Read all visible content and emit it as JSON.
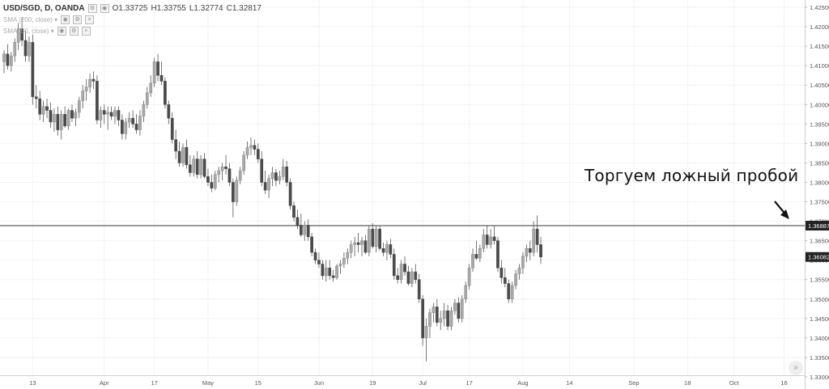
{
  "legend": {
    "symbol": "USD/SGD, D, OANDA",
    "open": "O1.33725",
    "high": "H1.33755",
    "low": "L1.32774",
    "close": "C1.32817",
    "study1": "SMA (200, close) ▾",
    "study2": "SMA (50, close) ▾"
  },
  "annotation": "Торгуем ложный пробой",
  "price_tags": {
    "level": "1.36887",
    "last": "1.36082"
  },
  "scroll_icon": "double-chevron-right-icon",
  "colors": {
    "up": "#a8a8a8",
    "down": "#4a4a4a",
    "wick": "#555555",
    "level_line": "#333333",
    "grid": "#f2f2f2",
    "tag_bg": "#222222"
  },
  "chart_data": {
    "type": "candlestick",
    "y_ticks": [
      "1.42500",
      "1.42000",
      "1.41500",
      "1.41000",
      "1.40500",
      "1.40000",
      "1.39500",
      "1.39000",
      "1.38500",
      "1.38000",
      "1.37500",
      "1.37000",
      "1.36500",
      "1.36000",
      "1.35500",
      "1.35000",
      "1.34500",
      "1.34000",
      "1.33500",
      "1.33000"
    ],
    "ylim": [
      1.33,
      1.4275
    ],
    "x_ticks": [
      {
        "label": "13",
        "bar": 8
      },
      {
        "label": "Apr",
        "bar": 28
      },
      {
        "label": "17",
        "bar": 42
      },
      {
        "label": "May",
        "bar": 57
      },
      {
        "label": "15",
        "bar": 71
      },
      {
        "label": "Jun",
        "bar": 88
      },
      {
        "label": "19",
        "bar": 103
      },
      {
        "label": "Jul",
        "bar": 117
      },
      {
        "label": "17",
        "bar": 130
      },
      {
        "label": "Aug",
        "bar": 145
      },
      {
        "label": "14",
        "bar": 158
      },
      {
        "label": "Sep",
        "bar": 176
      },
      {
        "label": "18",
        "bar": 191
      },
      {
        "label": "Oct",
        "bar": 204
      },
      {
        "label": "16",
        "bar": 218
      }
    ],
    "horizontal_level": 1.36887,
    "last_price": 1.36082,
    "ohlc": [
      [
        1.411,
        1.414,
        1.408,
        1.413
      ],
      [
        1.413,
        1.4155,
        1.409,
        1.41
      ],
      [
        1.41,
        1.4135,
        1.4085,
        1.4125
      ],
      [
        1.4125,
        1.417,
        1.411,
        1.416
      ],
      [
        1.416,
        1.421,
        1.414,
        1.4195
      ],
      [
        1.4195,
        1.4225,
        1.415,
        1.4165
      ],
      [
        1.4165,
        1.419,
        1.411,
        1.4125
      ],
      [
        1.4125,
        1.4175,
        1.411,
        1.416
      ],
      [
        1.416,
        1.418,
        1.4,
        1.402
      ],
      [
        1.402,
        1.405,
        1.399,
        1.4015
      ],
      [
        1.4015,
        1.4035,
        1.396,
        1.3975
      ],
      [
        1.3975,
        1.401,
        1.3955,
        1.3995
      ],
      [
        1.3995,
        1.4015,
        1.3965,
        1.3985
      ],
      [
        1.3985,
        1.4005,
        1.394,
        1.3955
      ],
      [
        1.3955,
        1.399,
        1.393,
        1.3975
      ],
      [
        1.3975,
        1.3995,
        1.392,
        1.3935
      ],
      [
        1.3935,
        1.3985,
        1.391,
        1.3975
      ],
      [
        1.3975,
        1.3995,
        1.394,
        1.3945
      ],
      [
        1.3945,
        1.399,
        1.3935,
        1.3985
      ],
      [
        1.3985,
        1.4,
        1.3955,
        1.3965
      ],
      [
        1.3965,
        1.399,
        1.3945,
        1.398
      ],
      [
        1.398,
        1.402,
        1.3965,
        1.401
      ],
      [
        1.401,
        1.405,
        1.399,
        1.4035
      ],
      [
        1.4035,
        1.4065,
        1.401,
        1.4045
      ],
      [
        1.4045,
        1.408,
        1.403,
        1.4065
      ],
      [
        1.4065,
        1.4085,
        1.404,
        1.406
      ],
      [
        1.406,
        1.4075,
        1.395,
        1.396
      ],
      [
        1.396,
        1.3995,
        1.394,
        1.3985
      ],
      [
        1.3985,
        1.4,
        1.395,
        1.3975
      ],
      [
        1.3975,
        1.3995,
        1.3935,
        1.398
      ],
      [
        1.398,
        1.3995,
        1.396,
        1.397
      ],
      [
        1.397,
        1.3995,
        1.395,
        1.3985
      ],
      [
        1.3985,
        1.3995,
        1.3945,
        1.396
      ],
      [
        1.396,
        1.3975,
        1.391,
        1.3925
      ],
      [
        1.3925,
        1.3965,
        1.391,
        1.3955
      ],
      [
        1.3955,
        1.398,
        1.394,
        1.3965
      ],
      [
        1.3965,
        1.3985,
        1.394,
        1.395
      ],
      [
        1.395,
        1.3975,
        1.3925,
        1.3935
      ],
      [
        1.3935,
        1.3985,
        1.392,
        1.397
      ],
      [
        1.397,
        1.401,
        1.3955,
        1.4
      ],
      [
        1.4,
        1.4045,
        1.399,
        1.403
      ],
      [
        1.403,
        1.4075,
        1.402,
        1.4055
      ],
      [
        1.4055,
        1.412,
        1.4045,
        1.411
      ],
      [
        1.411,
        1.413,
        1.406,
        1.4075
      ],
      [
        1.4075,
        1.411,
        1.405,
        1.406
      ],
      [
        1.406,
        1.407,
        1.399,
        1.4
      ],
      [
        1.4,
        1.401,
        1.395,
        1.3965
      ],
      [
        1.3965,
        1.398,
        1.39,
        1.391
      ],
      [
        1.391,
        1.3935,
        1.386,
        1.388
      ],
      [
        1.388,
        1.3905,
        1.384,
        1.385
      ],
      [
        1.385,
        1.39,
        1.384,
        1.389
      ],
      [
        1.389,
        1.391,
        1.3835,
        1.3845
      ],
      [
        1.3845,
        1.387,
        1.3815,
        1.3825
      ],
      [
        1.3825,
        1.387,
        1.3815,
        1.386
      ],
      [
        1.386,
        1.388,
        1.381,
        1.382
      ],
      [
        1.382,
        1.387,
        1.381,
        1.386
      ],
      [
        1.386,
        1.3875,
        1.381,
        1.3815
      ],
      [
        1.3815,
        1.3835,
        1.379,
        1.38
      ],
      [
        1.38,
        1.382,
        1.3775,
        1.3785
      ],
      [
        1.3785,
        1.383,
        1.378,
        1.382
      ],
      [
        1.382,
        1.384,
        1.38,
        1.383
      ],
      [
        1.383,
        1.385,
        1.3805,
        1.384
      ],
      [
        1.384,
        1.387,
        1.382,
        1.3835
      ],
      [
        1.3835,
        1.385,
        1.379,
        1.38
      ],
      [
        1.38,
        1.381,
        1.371,
        1.375
      ],
      [
        1.375,
        1.3815,
        1.374,
        1.3805
      ],
      [
        1.3805,
        1.384,
        1.3795,
        1.383
      ],
      [
        1.383,
        1.388,
        1.382,
        1.387
      ],
      [
        1.387,
        1.3905,
        1.386,
        1.389
      ],
      [
        1.389,
        1.3915,
        1.387,
        1.3895
      ],
      [
        1.3895,
        1.391,
        1.387,
        1.3885
      ],
      [
        1.3885,
        1.39,
        1.385,
        1.386
      ],
      [
        1.386,
        1.388,
        1.379,
        1.38
      ],
      [
        1.38,
        1.383,
        1.377,
        1.378
      ],
      [
        1.378,
        1.382,
        1.376,
        1.381
      ],
      [
        1.381,
        1.384,
        1.379,
        1.3825
      ],
      [
        1.3825,
        1.3835,
        1.379,
        1.3805
      ],
      [
        1.3805,
        1.383,
        1.3795,
        1.3815
      ],
      [
        1.3815,
        1.386,
        1.3805,
        1.384
      ],
      [
        1.384,
        1.3855,
        1.379,
        1.38
      ],
      [
        1.38,
        1.381,
        1.373,
        1.374
      ],
      [
        1.374,
        1.375,
        1.37,
        1.371
      ],
      [
        1.371,
        1.373,
        1.368,
        1.369
      ],
      [
        1.369,
        1.372,
        1.366,
        1.3665
      ],
      [
        1.3665,
        1.37,
        1.365,
        1.369
      ],
      [
        1.369,
        1.3705,
        1.365,
        1.366
      ],
      [
        1.366,
        1.367,
        1.361,
        1.362
      ],
      [
        1.362,
        1.363,
        1.359,
        1.36
      ],
      [
        1.36,
        1.362,
        1.358,
        1.359
      ],
      [
        1.359,
        1.36,
        1.355,
        1.356
      ],
      [
        1.356,
        1.36,
        1.3545,
        1.358
      ],
      [
        1.358,
        1.36,
        1.355,
        1.356
      ],
      [
        1.356,
        1.3575,
        1.3545,
        1.3555
      ],
      [
        1.3555,
        1.359,
        1.355,
        1.3585
      ],
      [
        1.3585,
        1.36,
        1.3565,
        1.359
      ],
      [
        1.359,
        1.362,
        1.358,
        1.3605
      ],
      [
        1.3605,
        1.363,
        1.359,
        1.362
      ],
      [
        1.362,
        1.365,
        1.3605,
        1.364
      ],
      [
        1.364,
        1.366,
        1.361,
        1.3645
      ],
      [
        1.3645,
        1.367,
        1.362,
        1.364
      ],
      [
        1.364,
        1.366,
        1.361,
        1.365
      ],
      [
        1.365,
        1.3665,
        1.3615,
        1.362
      ],
      [
        1.362,
        1.369,
        1.361,
        1.368
      ],
      [
        1.368,
        1.3695,
        1.363,
        1.3635
      ],
      [
        1.3635,
        1.369,
        1.362,
        1.368
      ],
      [
        1.368,
        1.369,
        1.3625,
        1.363
      ],
      [
        1.363,
        1.3645,
        1.361,
        1.362
      ],
      [
        1.362,
        1.365,
        1.36,
        1.364
      ],
      [
        1.364,
        1.3655,
        1.3605,
        1.3615
      ],
      [
        1.3615,
        1.363,
        1.355,
        1.356
      ],
      [
        1.356,
        1.358,
        1.354,
        1.355
      ],
      [
        1.355,
        1.36,
        1.354,
        1.359
      ],
      [
        1.359,
        1.361,
        1.356,
        1.357
      ],
      [
        1.357,
        1.3585,
        1.3535,
        1.354
      ],
      [
        1.354,
        1.358,
        1.353,
        1.357
      ],
      [
        1.357,
        1.359,
        1.354,
        1.355
      ],
      [
        1.355,
        1.3565,
        1.349,
        1.35
      ],
      [
        1.35,
        1.351,
        1.338,
        1.34
      ],
      [
        1.34,
        1.345,
        1.334,
        1.343
      ],
      [
        1.343,
        1.3475,
        1.34,
        1.3465
      ],
      [
        1.3465,
        1.349,
        1.344,
        1.348
      ],
      [
        1.348,
        1.35,
        1.343,
        1.344
      ],
      [
        1.344,
        1.347,
        1.342,
        1.345
      ],
      [
        1.345,
        1.349,
        1.343,
        1.347
      ],
      [
        1.347,
        1.3485,
        1.342,
        1.343
      ],
      [
        1.343,
        1.348,
        1.342,
        1.347
      ],
      [
        1.347,
        1.35,
        1.346,
        1.349
      ],
      [
        1.349,
        1.3505,
        1.344,
        1.345
      ],
      [
        1.345,
        1.351,
        1.344,
        1.35
      ],
      [
        1.35,
        1.3545,
        1.349,
        1.3535
      ],
      [
        1.3535,
        1.359,
        1.3525,
        1.358
      ],
      [
        1.358,
        1.363,
        1.357,
        1.3615
      ],
      [
        1.3615,
        1.365,
        1.36,
        1.3605
      ],
      [
        1.3605,
        1.364,
        1.3595,
        1.363
      ],
      [
        1.363,
        1.368,
        1.362,
        1.3665
      ],
      [
        1.3665,
        1.369,
        1.363,
        1.364
      ],
      [
        1.364,
        1.368,
        1.363,
        1.366
      ],
      [
        1.366,
        1.369,
        1.364,
        1.365
      ],
      [
        1.365,
        1.366,
        1.357,
        1.358
      ],
      [
        1.358,
        1.36,
        1.354,
        1.3555
      ],
      [
        1.3555,
        1.358,
        1.353,
        1.354
      ],
      [
        1.354,
        1.355,
        1.349,
        1.35
      ],
      [
        1.35,
        1.3545,
        1.349,
        1.3535
      ],
      [
        1.3535,
        1.3575,
        1.3525,
        1.3565
      ],
      [
        1.3565,
        1.359,
        1.355,
        1.358
      ],
      [
        1.358,
        1.362,
        1.3565,
        1.361
      ],
      [
        1.361,
        1.364,
        1.3595,
        1.363
      ],
      [
        1.363,
        1.365,
        1.36,
        1.362
      ],
      [
        1.362,
        1.37,
        1.361,
        1.368
      ],
      [
        1.368,
        1.3715,
        1.362,
        1.364
      ],
      [
        1.364,
        1.366,
        1.359,
        1.3608
      ]
    ]
  }
}
